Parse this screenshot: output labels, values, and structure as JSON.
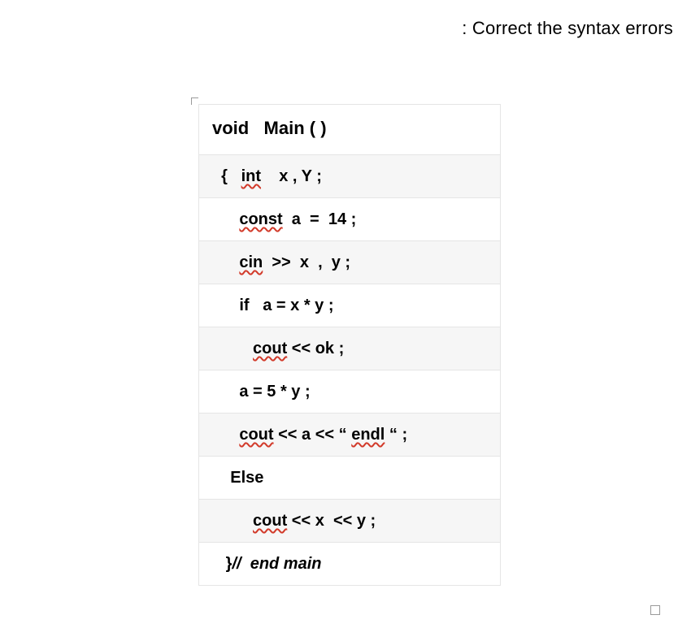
{
  "title": ": Correct the syntax errors",
  "table": {
    "border_color": "#e5e5e5",
    "alt_bg": "#f6f6f6",
    "font_family": "Arial",
    "rows": [
      {
        "alt": false,
        "header": true,
        "segments": [
          {
            "text": "void   Main ( )",
            "bold": true
          }
        ]
      },
      {
        "alt": true,
        "indent": "  ",
        "segments": [
          {
            "text": "{   ",
            "bold": true
          },
          {
            "text": "int",
            "bold": true,
            "squiggle": true
          },
          {
            "text": "    x , Y ;",
            "bold": true
          }
        ]
      },
      {
        "alt": false,
        "indent": "      ",
        "segments": [
          {
            "text": "const",
            "bold": true,
            "squiggle": true
          },
          {
            "text": "  a  =  14 ;",
            "bold": true
          }
        ]
      },
      {
        "alt": true,
        "indent": "      ",
        "segments": [
          {
            "text": "cin",
            "bold": true,
            "squiggle": true
          },
          {
            "text": "  >>  x  ,  y ;",
            "bold": true
          }
        ]
      },
      {
        "alt": false,
        "indent": "      ",
        "segments": [
          {
            "text": "if   a = x * y ;",
            "bold": true
          }
        ]
      },
      {
        "alt": true,
        "indent": "         ",
        "segments": [
          {
            "text": "cout",
            "bold": true,
            "squiggle": true
          },
          {
            "text": " << ok ;",
            "bold": true
          }
        ]
      },
      {
        "alt": false,
        "indent": "      ",
        "segments": [
          {
            "text": "a = 5 * y ;",
            "bold": true
          }
        ]
      },
      {
        "alt": true,
        "indent": "      ",
        "segments": [
          {
            "text": "cout",
            "bold": true,
            "squiggle": true
          },
          {
            "text": " << a << ",
            "bold": true
          },
          {
            "text": "“ ",
            "bold": true
          },
          {
            "text": "endl",
            "bold": true,
            "squiggle": true
          },
          {
            "text": " “",
            "bold": true
          },
          {
            "text": " ;",
            "bold": true
          }
        ]
      },
      {
        "alt": false,
        "indent": "    ",
        "segments": [
          {
            "text": "Else",
            "bold": true
          }
        ]
      },
      {
        "alt": true,
        "indent": "         ",
        "segments": [
          {
            "text": "cout",
            "bold": true,
            "squiggle": true
          },
          {
            "text": " << x  << y ;",
            "bold": true
          }
        ]
      },
      {
        "alt": false,
        "indent": "   ",
        "segments": [
          {
            "text": "}",
            "bold": true
          },
          {
            "text": "//  end main",
            "bold": true,
            "italic": true
          }
        ]
      }
    ]
  }
}
